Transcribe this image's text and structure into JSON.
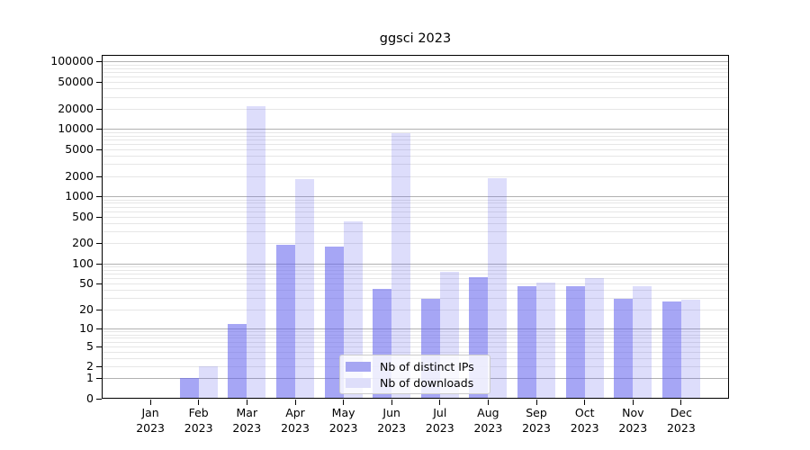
{
  "title": "ggsci 2023",
  "chart_data": {
    "type": "bar",
    "title": "ggsci 2023",
    "y_scale": "log1p",
    "ylim": [
      0,
      125000
    ],
    "grid": true,
    "legend_position": "lower center",
    "categories": [
      "Jan 2023",
      "Feb 2023",
      "Mar 2023",
      "Apr 2023",
      "May 2023",
      "Jun 2023",
      "Jul 2023",
      "Aug 2023",
      "Sep 2023",
      "Oct 2023",
      "Nov 2023",
      "Dec 2023"
    ],
    "x_ticks": [
      {
        "month": "Jan",
        "year": "2023"
      },
      {
        "month": "Feb",
        "year": "2023"
      },
      {
        "month": "Mar",
        "year": "2023"
      },
      {
        "month": "Apr",
        "year": "2023"
      },
      {
        "month": "May",
        "year": "2023"
      },
      {
        "month": "Jun",
        "year": "2023"
      },
      {
        "month": "Jul",
        "year": "2023"
      },
      {
        "month": "Aug",
        "year": "2023"
      },
      {
        "month": "Sep",
        "year": "2023"
      },
      {
        "month": "Oct",
        "year": "2023"
      },
      {
        "month": "Nov",
        "year": "2023"
      },
      {
        "month": "Dec",
        "year": "2023"
      }
    ],
    "y_tick_labels": [
      "100000",
      "50000",
      "20000",
      "10000",
      "5000",
      "2000",
      "1000",
      "500",
      "200",
      "100",
      "50",
      "20",
      "10",
      "5",
      "2",
      "1",
      "0"
    ],
    "series": [
      {
        "name": "Nb of distinct IPs",
        "slug": "distinct-ips",
        "fill": "rgba(102,102,238,0.58)",
        "legend_color": "#a6a6f2",
        "values": [
          0,
          1,
          12,
          190,
          180,
          41,
          29,
          62,
          46,
          46,
          29,
          27
        ]
      },
      {
        "name": "Nb of downloads",
        "slug": "downloads",
        "fill": "rgba(102,102,238,0.22)",
        "legend_color": "#dedefa",
        "values": [
          0,
          2,
          22000,
          1800,
          420,
          8600,
          75,
          1850,
          52,
          60,
          45,
          28
        ]
      }
    ],
    "colors": {
      "grid_major": "#b1b1b1",
      "grid_minor": "#e6e6e6",
      "axis": "#000000",
      "legend_border": "#cccccc"
    }
  }
}
